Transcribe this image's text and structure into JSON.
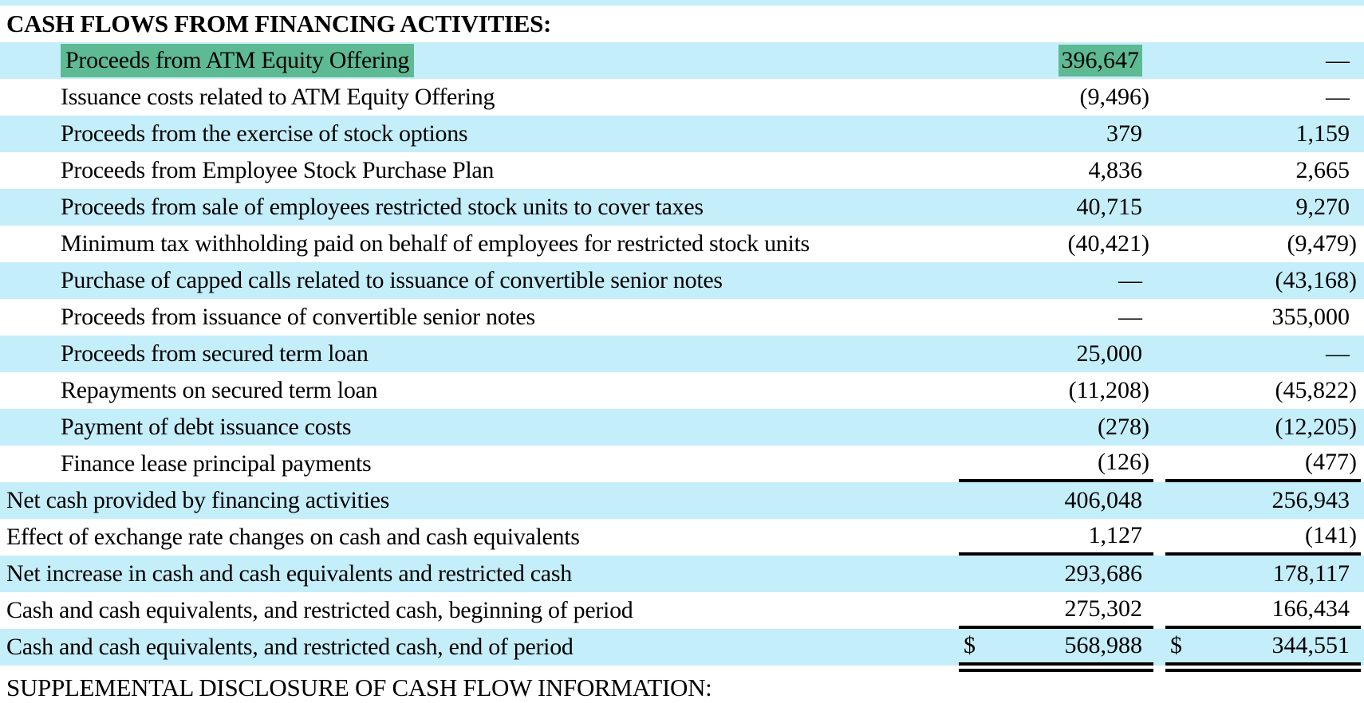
{
  "document": {
    "section_header": "CASH FLOWS FROM FINANCING ACTIVITIES:",
    "footer_header": "SUPPLEMENTAL DISCLOSURE OF CASH FLOW INFORMATION:",
    "currency_symbol": "$",
    "colors": {
      "row_stripe": "#c5eefb",
      "search_highlight": "#5eba93",
      "text": "#000000",
      "rule": "#000000"
    },
    "rows": [
      {
        "label": "Proceeds from ATM Equity Offering",
        "indent": true,
        "values": [
          "396,647",
          "—"
        ],
        "highlighted": true
      },
      {
        "label": "Issuance costs related to ATM Equity Offering",
        "indent": true,
        "values": [
          "(9,496)",
          "—"
        ]
      },
      {
        "label": "Proceeds from the exercise of stock options",
        "indent": true,
        "values": [
          "379",
          "1,159"
        ]
      },
      {
        "label": "Proceeds from Employee Stock Purchase Plan",
        "indent": true,
        "values": [
          "4,836",
          "2,665"
        ]
      },
      {
        "label": "Proceeds from sale of employees restricted stock units to cover taxes",
        "indent": true,
        "values": [
          "40,715",
          "9,270"
        ]
      },
      {
        "label": "Minimum tax withholding paid on behalf of employees for restricted stock units",
        "indent": true,
        "values": [
          "(40,421)",
          "(9,479)"
        ]
      },
      {
        "label": "Purchase of capped calls related to issuance of convertible senior notes",
        "indent": true,
        "values": [
          "—",
          "(43,168)"
        ]
      },
      {
        "label": "Proceeds from issuance of convertible senior notes",
        "indent": true,
        "values": [
          "—",
          "355,000"
        ]
      },
      {
        "label": "Proceeds from secured term loan",
        "indent": true,
        "values": [
          "25,000",
          "—"
        ]
      },
      {
        "label": "Repayments on secured term loan",
        "indent": true,
        "values": [
          "(11,208)",
          "(45,822)"
        ]
      },
      {
        "label": "Payment of debt issuance costs",
        "indent": true,
        "values": [
          "(278)",
          "(12,205)"
        ]
      },
      {
        "label": "Finance lease principal payments",
        "indent": true,
        "values": [
          "(126)",
          "(477)"
        ],
        "rule_below": "single"
      },
      {
        "label": "Net cash provided by financing activities",
        "indent": false,
        "values": [
          "406,048",
          "256,943"
        ]
      },
      {
        "label": "Effect of exchange rate changes on cash and cash equivalents",
        "indent": false,
        "values": [
          "1,127",
          "(141)"
        ],
        "rule_below": "single"
      },
      {
        "label": "Net increase in cash and cash equivalents and restricted cash",
        "indent": false,
        "values": [
          "293,686",
          "178,117"
        ]
      },
      {
        "label": "Cash and cash equivalents, and restricted cash, beginning of period",
        "indent": false,
        "values": [
          "275,302",
          "166,434"
        ],
        "rule_below": "single"
      },
      {
        "label": "Cash and cash equivalents, and restricted cash, end of period",
        "indent": false,
        "values": [
          "568,988",
          "344,551"
        ],
        "dollar_sign": true,
        "rule_below": "double"
      }
    ]
  }
}
